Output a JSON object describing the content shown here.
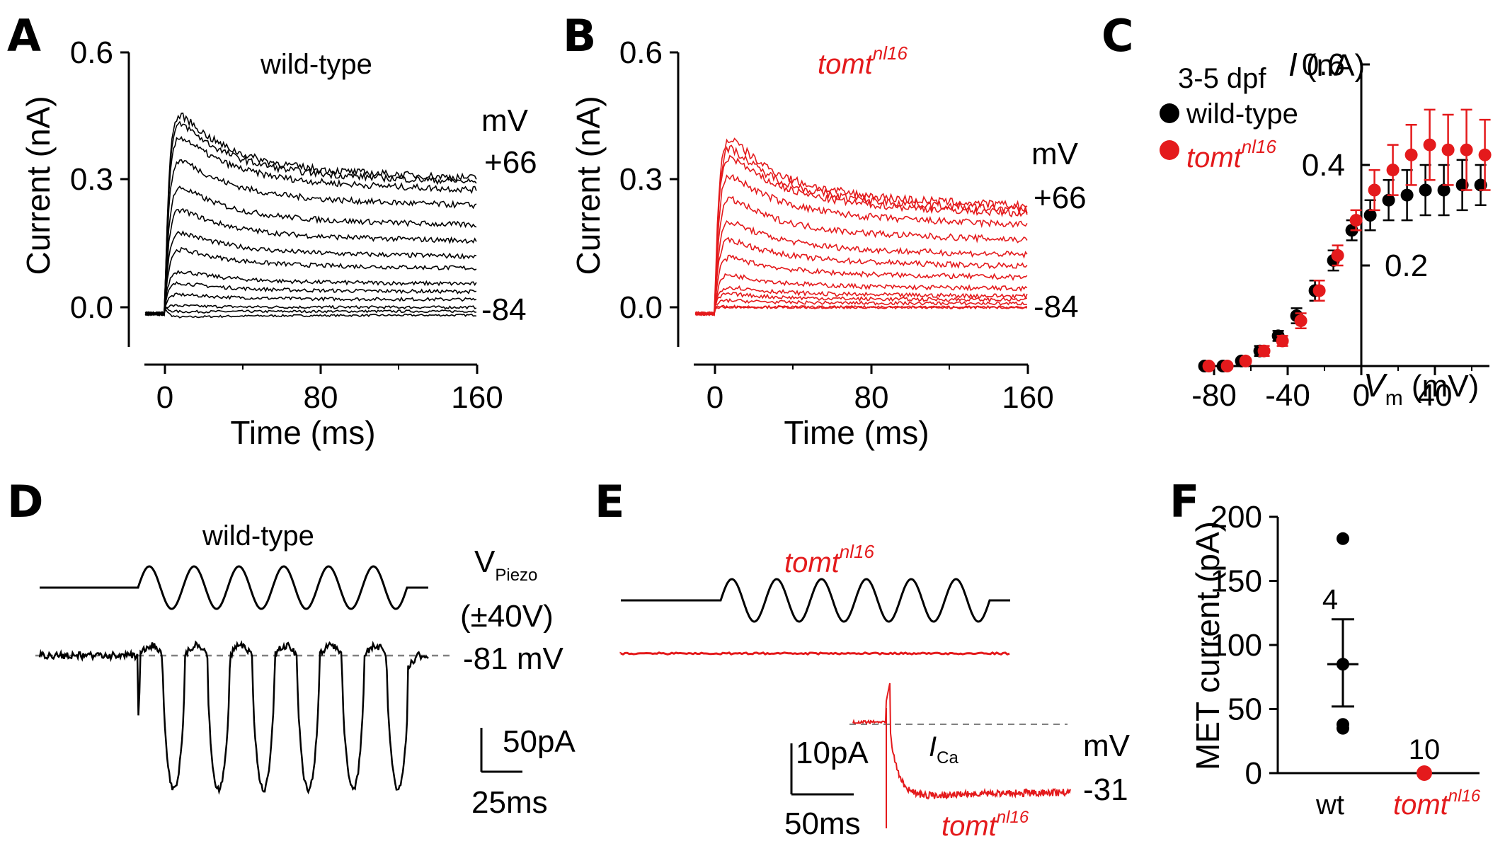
{
  "colors": {
    "wildtype": "#000000",
    "tomt": "#e41a1c",
    "baseline": "#808080"
  },
  "panels": {
    "A": {
      "letter": "A",
      "title": "wild-type",
      "ylabel": "Current (nA)",
      "xlabel": "Time (ms)",
      "yticks": [
        "0.6",
        "0.3",
        "0.0"
      ],
      "xticks": [
        "0",
        "80",
        "160"
      ],
      "unit": "mV",
      "top_voltage": "+66",
      "bottom_voltage": "-84"
    },
    "B": {
      "letter": "B",
      "title_main": "tomt",
      "title_sup": "nl16",
      "ylabel": "Current (nA)",
      "xlabel": "Time (ms)",
      "yticks": [
        "0.6",
        "0.3",
        "0.0"
      ],
      "xticks": [
        "0",
        "80",
        "160"
      ],
      "unit": "mV",
      "top_voltage": "+66",
      "bottom_voltage": "-84"
    },
    "C": {
      "letter": "C",
      "group_label": "3-5 dpf",
      "legend_wt": "wild-type",
      "legend_tomt_main": "tomt",
      "legend_tomt_sup": "nl16",
      "yaxis_main": "I",
      "yaxis_unit": " (nA)",
      "yticks": [
        "0.6",
        "0.4",
        "0.2"
      ],
      "xticks": [
        "-80",
        "-40",
        "0",
        "40"
      ],
      "xaxis_main": "V",
      "xaxis_sub": "m",
      "xaxis_unit": " (mV)"
    },
    "D": {
      "letter": "D",
      "title": "wild-type",
      "stim_label_main": "V",
      "stim_label_sub": "Piezo",
      "stim_amp": "(±40V)",
      "holding": "-81 mV",
      "scale_y": "50pA",
      "scale_x": "25ms"
    },
    "E": {
      "letter": "E",
      "title_main": "tomt",
      "title_sup": "nl16",
      "scale_y": "10pA",
      "scale_x": "50ms",
      "ica_main": "I",
      "ica_sub": "Ca",
      "unit": "mV",
      "voltage": "-31",
      "inset_main": "tomt",
      "inset_sup": "nl16"
    },
    "F": {
      "letter": "F",
      "ylabel": "MET current (pA)",
      "yticks": [
        "200",
        "150",
        "100",
        "50",
        "0"
      ],
      "n_wt": "4",
      "n_tomt": "10",
      "cat_wt": "wt",
      "cat_tomt_main": "tomt",
      "cat_tomt_sup": "nl16"
    }
  },
  "chart_data": [
    {
      "panel": "A",
      "type": "line",
      "description_source": "current traces, wild-type, voltage steps -84 to +66 mV",
      "xlim": [
        0,
        160
      ],
      "ylim": [
        -0.1,
        0.6
      ],
      "x_unit": "ms",
      "steady_currents_nA": [
        -0.02,
        -0.01,
        0.0,
        0.02,
        0.04,
        0.06,
        0.1,
        0.13,
        0.17,
        0.21,
        0.26,
        0.3,
        0.32,
        0.33
      ],
      "peak_current_nA": 0.43
    },
    {
      "panel": "B",
      "type": "line",
      "xlim": [
        0,
        160
      ],
      "ylim": [
        -0.1,
        0.6
      ],
      "x_unit": "ms",
      "steady_currents_nA": [
        0.0,
        0.0,
        0.01,
        0.02,
        0.03,
        0.05,
        0.08,
        0.11,
        0.14,
        0.18,
        0.22,
        0.25,
        0.26,
        0.27
      ],
      "peak_current_nA": 0.39
    },
    {
      "panel": "C",
      "type": "scatter",
      "x_label": "Vm (mV)",
      "y_label": "I (nA)",
      "xlim": [
        -90,
        70
      ],
      "ylim": [
        0,
        0.65
      ],
      "x": [
        -84,
        -74,
        -64,
        -54,
        -44,
        -34,
        -24,
        -14,
        -4,
        6,
        16,
        26,
        36,
        46,
        56,
        66
      ],
      "series": [
        {
          "name": "wild-type",
          "values": [
            0.0,
            0.0,
            0.01,
            0.03,
            0.06,
            0.1,
            0.15,
            0.21,
            0.27,
            0.3,
            0.33,
            0.34,
            0.35,
            0.35,
            0.36,
            0.36
          ],
          "errors": [
            0.005,
            0.005,
            0.005,
            0.01,
            0.01,
            0.015,
            0.02,
            0.02,
            0.02,
            0.03,
            0.04,
            0.05,
            0.05,
            0.05,
            0.05,
            0.04
          ]
        },
        {
          "name": "tomt nl16",
          "values": [
            0.0,
            0.0,
            0.01,
            0.03,
            0.05,
            0.09,
            0.15,
            0.22,
            0.29,
            0.35,
            0.39,
            0.42,
            0.44,
            0.43,
            0.43,
            0.42
          ],
          "errors": [
            0.005,
            0.005,
            0.005,
            0.01,
            0.01,
            0.015,
            0.02,
            0.02,
            0.02,
            0.04,
            0.05,
            0.06,
            0.07,
            0.07,
            0.08,
            0.07
          ]
        }
      ]
    },
    {
      "panel": "F",
      "type": "scatter",
      "y_label": "MET current (pA)",
      "ylim": [
        0,
        200
      ],
      "categories": [
        "wt",
        "tomt nl16"
      ],
      "points": [
        {
          "category": "wt",
          "values": [
            183,
            85,
            38,
            35
          ],
          "mean": 85,
          "sd_upper": 120,
          "sd_lower": 52
        },
        {
          "category": "tomt nl16",
          "values": [
            0
          ],
          "mean": 0
        }
      ]
    }
  ]
}
